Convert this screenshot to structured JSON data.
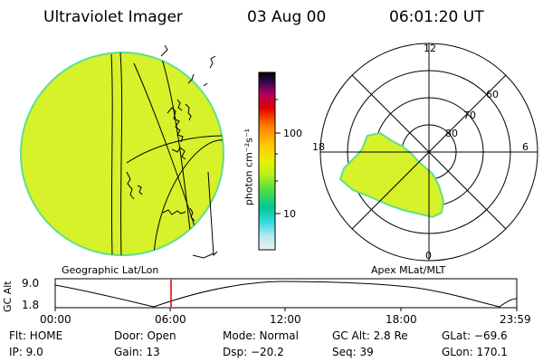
{
  "header": {
    "title": "Ultraviolet Imager",
    "date": "03 Aug 00",
    "time": "06:01:20 UT"
  },
  "left_panel": {
    "caption": "Geographic Lat/Lon"
  },
  "right_panel": {
    "caption": "Apex MLat/MLT",
    "mlt_labels": {
      "top": "12",
      "left": "18",
      "right": "6",
      "bottom": "0"
    },
    "lat_labels": [
      "60",
      "70",
      "80"
    ]
  },
  "colorbar": {
    "unit_label": "photon cm⁻²s⁻¹",
    "ticks": [
      "100",
      "10"
    ]
  },
  "timeline": {
    "axis_label": "GC Alt",
    "y_ticks": [
      "9.0",
      "1.8"
    ],
    "x_ticks": [
      "00:00",
      "06:00",
      "12:00",
      "18:00",
      "23:59"
    ],
    "current_time_marker": "06:01"
  },
  "status": {
    "flt": "Flt: HOME",
    "door": "Door: Open",
    "mode": "Mode: Normal",
    "gc_alt": "GC Alt: 2.8 Re",
    "glat": "GLat: −69.6",
    "ip": "IP:  9.0",
    "gain": "Gain: 13",
    "dsp": "Dsp:  −20.2",
    "seq": "Seq: 39",
    "glon": "GLon: 170.1"
  },
  "colors": {
    "disk_fill": "#d7f12a",
    "disk_edge": "#5fe08a",
    "marker": "#d00000"
  }
}
